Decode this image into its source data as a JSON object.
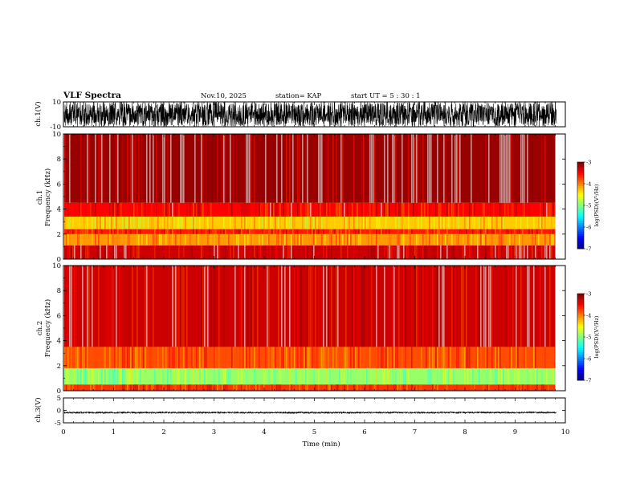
{
  "header": {
    "title": "VLF Spectra",
    "date": "Nov.10, 2025",
    "station": "station= KAP",
    "start_ut": "start  UT =  5 : 30 : 1"
  },
  "colors": {
    "waveform": "#000000",
    "spectrum_low": "#0000ff",
    "spectrum_mid": "#00ff00",
    "spectrum_high": "#ff0000",
    "spectrum_top": "#ffffff"
  },
  "chart_data": [
    {
      "type": "line",
      "name": "ch1-waveform",
      "ylabel": "ch.1(V)",
      "ylim": [
        -10,
        10
      ],
      "yticks": [
        "10",
        "-10"
      ],
      "xlim": [
        0,
        10
      ],
      "data_end_min": 9.8,
      "description_range": [
        -10,
        10
      ]
    },
    {
      "type": "heatmap",
      "name": "ch1-spectrogram",
      "ylabel": "ch.1\nFrequency (kHz)",
      "ylim": [
        0,
        10
      ],
      "yticks": [
        "0",
        "2",
        "4",
        "6",
        "8",
        "10"
      ],
      "xlim": [
        0,
        10
      ],
      "data_end_min": 9.8,
      "bands": [
        {
          "from_khz": 0,
          "to_khz": 1.1,
          "level": -3.3
        },
        {
          "from_khz": 1.1,
          "to_khz": 2.0,
          "level": -4.1
        },
        {
          "from_khz": 2.0,
          "to_khz": 2.4,
          "level": -3.6
        },
        {
          "from_khz": 2.4,
          "to_khz": 3.4,
          "level": -4.3
        },
        {
          "from_khz": 3.4,
          "to_khz": 4.5,
          "level": -3.5
        },
        {
          "from_khz": 4.5,
          "to_khz": 10,
          "level": -3.1
        }
      ],
      "colorbar": {
        "label": "log(PSD)(V²/Hz)",
        "min": -7,
        "max": -3,
        "ticks": [
          "-3",
          "-4",
          "-5",
          "-6",
          "-7"
        ]
      }
    },
    {
      "type": "heatmap",
      "name": "ch2-spectrogram",
      "ylabel": "ch.2\nFrequency (kHz)",
      "ylim": [
        0,
        10
      ],
      "yticks": [
        "0",
        "2",
        "4",
        "6",
        "8",
        "10"
      ],
      "xlim": [
        0,
        10
      ],
      "data_end_min": 9.8,
      "bands": [
        {
          "from_khz": 0,
          "to_khz": 0.5,
          "level": -3.7
        },
        {
          "from_khz": 0.5,
          "to_khz": 1.8,
          "level": -4.9
        },
        {
          "from_khz": 1.8,
          "to_khz": 3.5,
          "level": -3.8
        },
        {
          "from_khz": 3.5,
          "to_khz": 10,
          "level": -3.3
        }
      ],
      "colorbar": {
        "label": "log(PSD)(V²/Hz)",
        "min": -7,
        "max": -3,
        "ticks": [
          "-3",
          "-4",
          "-5",
          "-6",
          "-7"
        ]
      }
    },
    {
      "type": "line",
      "name": "ch3-waveform",
      "ylabel": "ch.3(V)",
      "ylim": [
        -5,
        5
      ],
      "yticks": [
        "5",
        "0",
        "-5"
      ],
      "xlim": [
        0,
        10
      ],
      "data_end_min": 9.8,
      "description_range": [
        -1.2,
        -0.6
      ]
    }
  ],
  "xaxis": {
    "label": "Time (min)",
    "ticks": [
      "0",
      "1",
      "2",
      "3",
      "4",
      "5",
      "6",
      "7",
      "8",
      "9",
      "10"
    ]
  }
}
